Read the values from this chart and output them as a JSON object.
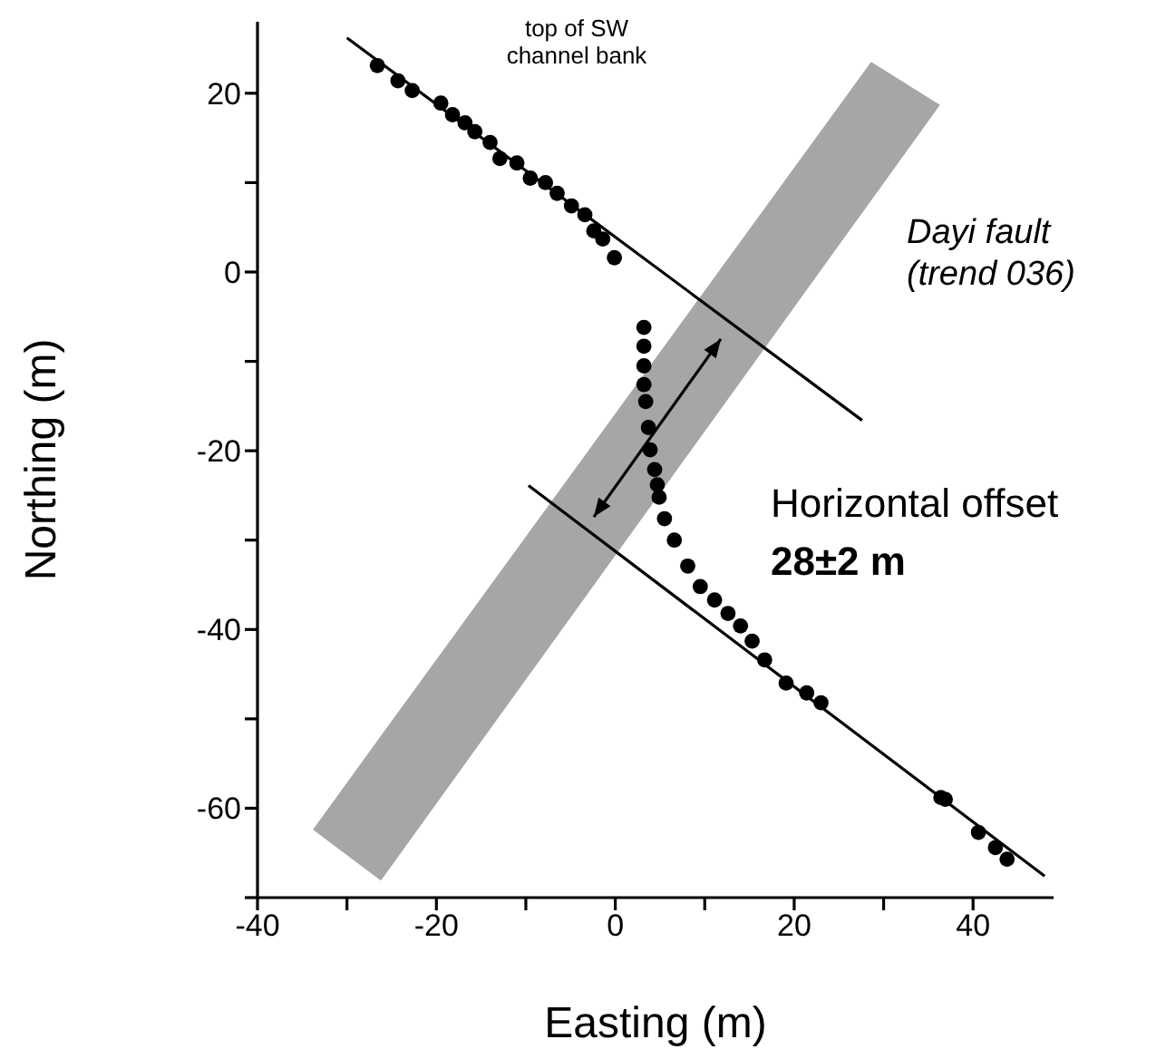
{
  "chart_data": {
    "type": "scatter",
    "xlabel": "Easting (m)",
    "ylabel": "Northing (m)",
    "xlim": [
      -40,
      49
    ],
    "xticks": [
      -40,
      {
        "value": -30,
        "label": null
      },
      -20,
      {
        "value": -10,
        "label": null
      },
      0,
      {
        "value": 10,
        "label": null
      },
      20,
      {
        "value": 30,
        "label": null
      },
      40
    ],
    "ylim": [
      -70,
      28
    ],
    "yticks": [
      {
        "value": -70,
        "label": null
      },
      -60,
      {
        "value": -50,
        "label": null
      },
      -40,
      {
        "value": -30,
        "label": null
      },
      -20,
      {
        "value": -10,
        "label": null
      },
      0,
      {
        "value": 10,
        "label": null
      },
      20
    ],
    "marker": "circle",
    "grid": false,
    "legend": false,
    "series": [
      {
        "type": "area",
        "color": "#a6a6a6",
        "x": [
          -33.8,
          -26.2,
          28.6,
          36.3
        ],
        "values": [
          null,
          null,
          null,
          null
        ],
        "lower": [
          -62.4,
          -68.1,
          8.0,
          18.7
        ],
        "upper": [
          -62.4,
          -51.9,
          23.5,
          18.7
        ]
      },
      {
        "color": "#000000",
        "x": [
          -26.6,
          -24.3,
          -22.7,
          -19.5,
          -18.2,
          -16.8,
          -15.7,
          -14.0,
          -12.9,
          -11.0,
          -9.5,
          -7.8,
          -6.5,
          -4.9,
          -3.4,
          -2.4,
          -1.4,
          -0.1
        ],
        "values": [
          23.1,
          21.4,
          20.3,
          18.9,
          17.6,
          16.7,
          15.7,
          14.5,
          12.7,
          12.2,
          10.5,
          10.0,
          8.8,
          7.4,
          6.4,
          4.6,
          3.7,
          1.6
        ]
      },
      {
        "color": "#000000",
        "x": [
          3.2,
          3.2,
          3.2,
          3.2,
          3.4,
          3.7,
          3.9,
          4.4,
          4.7,
          4.9,
          5.5,
          6.6,
          8.1,
          9.5,
          11.1,
          12.6,
          14.0,
          15.3,
          16.7,
          19.1,
          21.4,
          23.0,
          36.4,
          36.9,
          40.6,
          42.5,
          43.8
        ],
        "values": [
          -6.2,
          -8.3,
          -10.5,
          -12.6,
          -14.5,
          -17.4,
          -19.9,
          -22.1,
          -23.8,
          -25.2,
          -27.6,
          -30.0,
          -32.9,
          -35.2,
          -36.7,
          -38.2,
          -39.6,
          -41.3,
          -43.4,
          -46.0,
          -47.1,
          -48.2,
          -58.8,
          -59.0,
          -62.7,
          -64.4,
          -65.7
        ]
      },
      {
        "type": "line",
        "color": "#000000",
        "marker": "none",
        "x": [
          -30,
          27.6
        ],
        "values": [
          26.2,
          -16.6
        ]
      },
      {
        "type": "line",
        "color": "#000000",
        "marker": "none",
        "x": [
          -9.7,
          48
        ],
        "values": [
          -23.9,
          -67.6
        ]
      }
    ],
    "annotations": [
      "top of SW channel bank",
      "Dayi fault (trend 036)",
      "Horizontal offset",
      "28±2 m"
    ]
  }
}
